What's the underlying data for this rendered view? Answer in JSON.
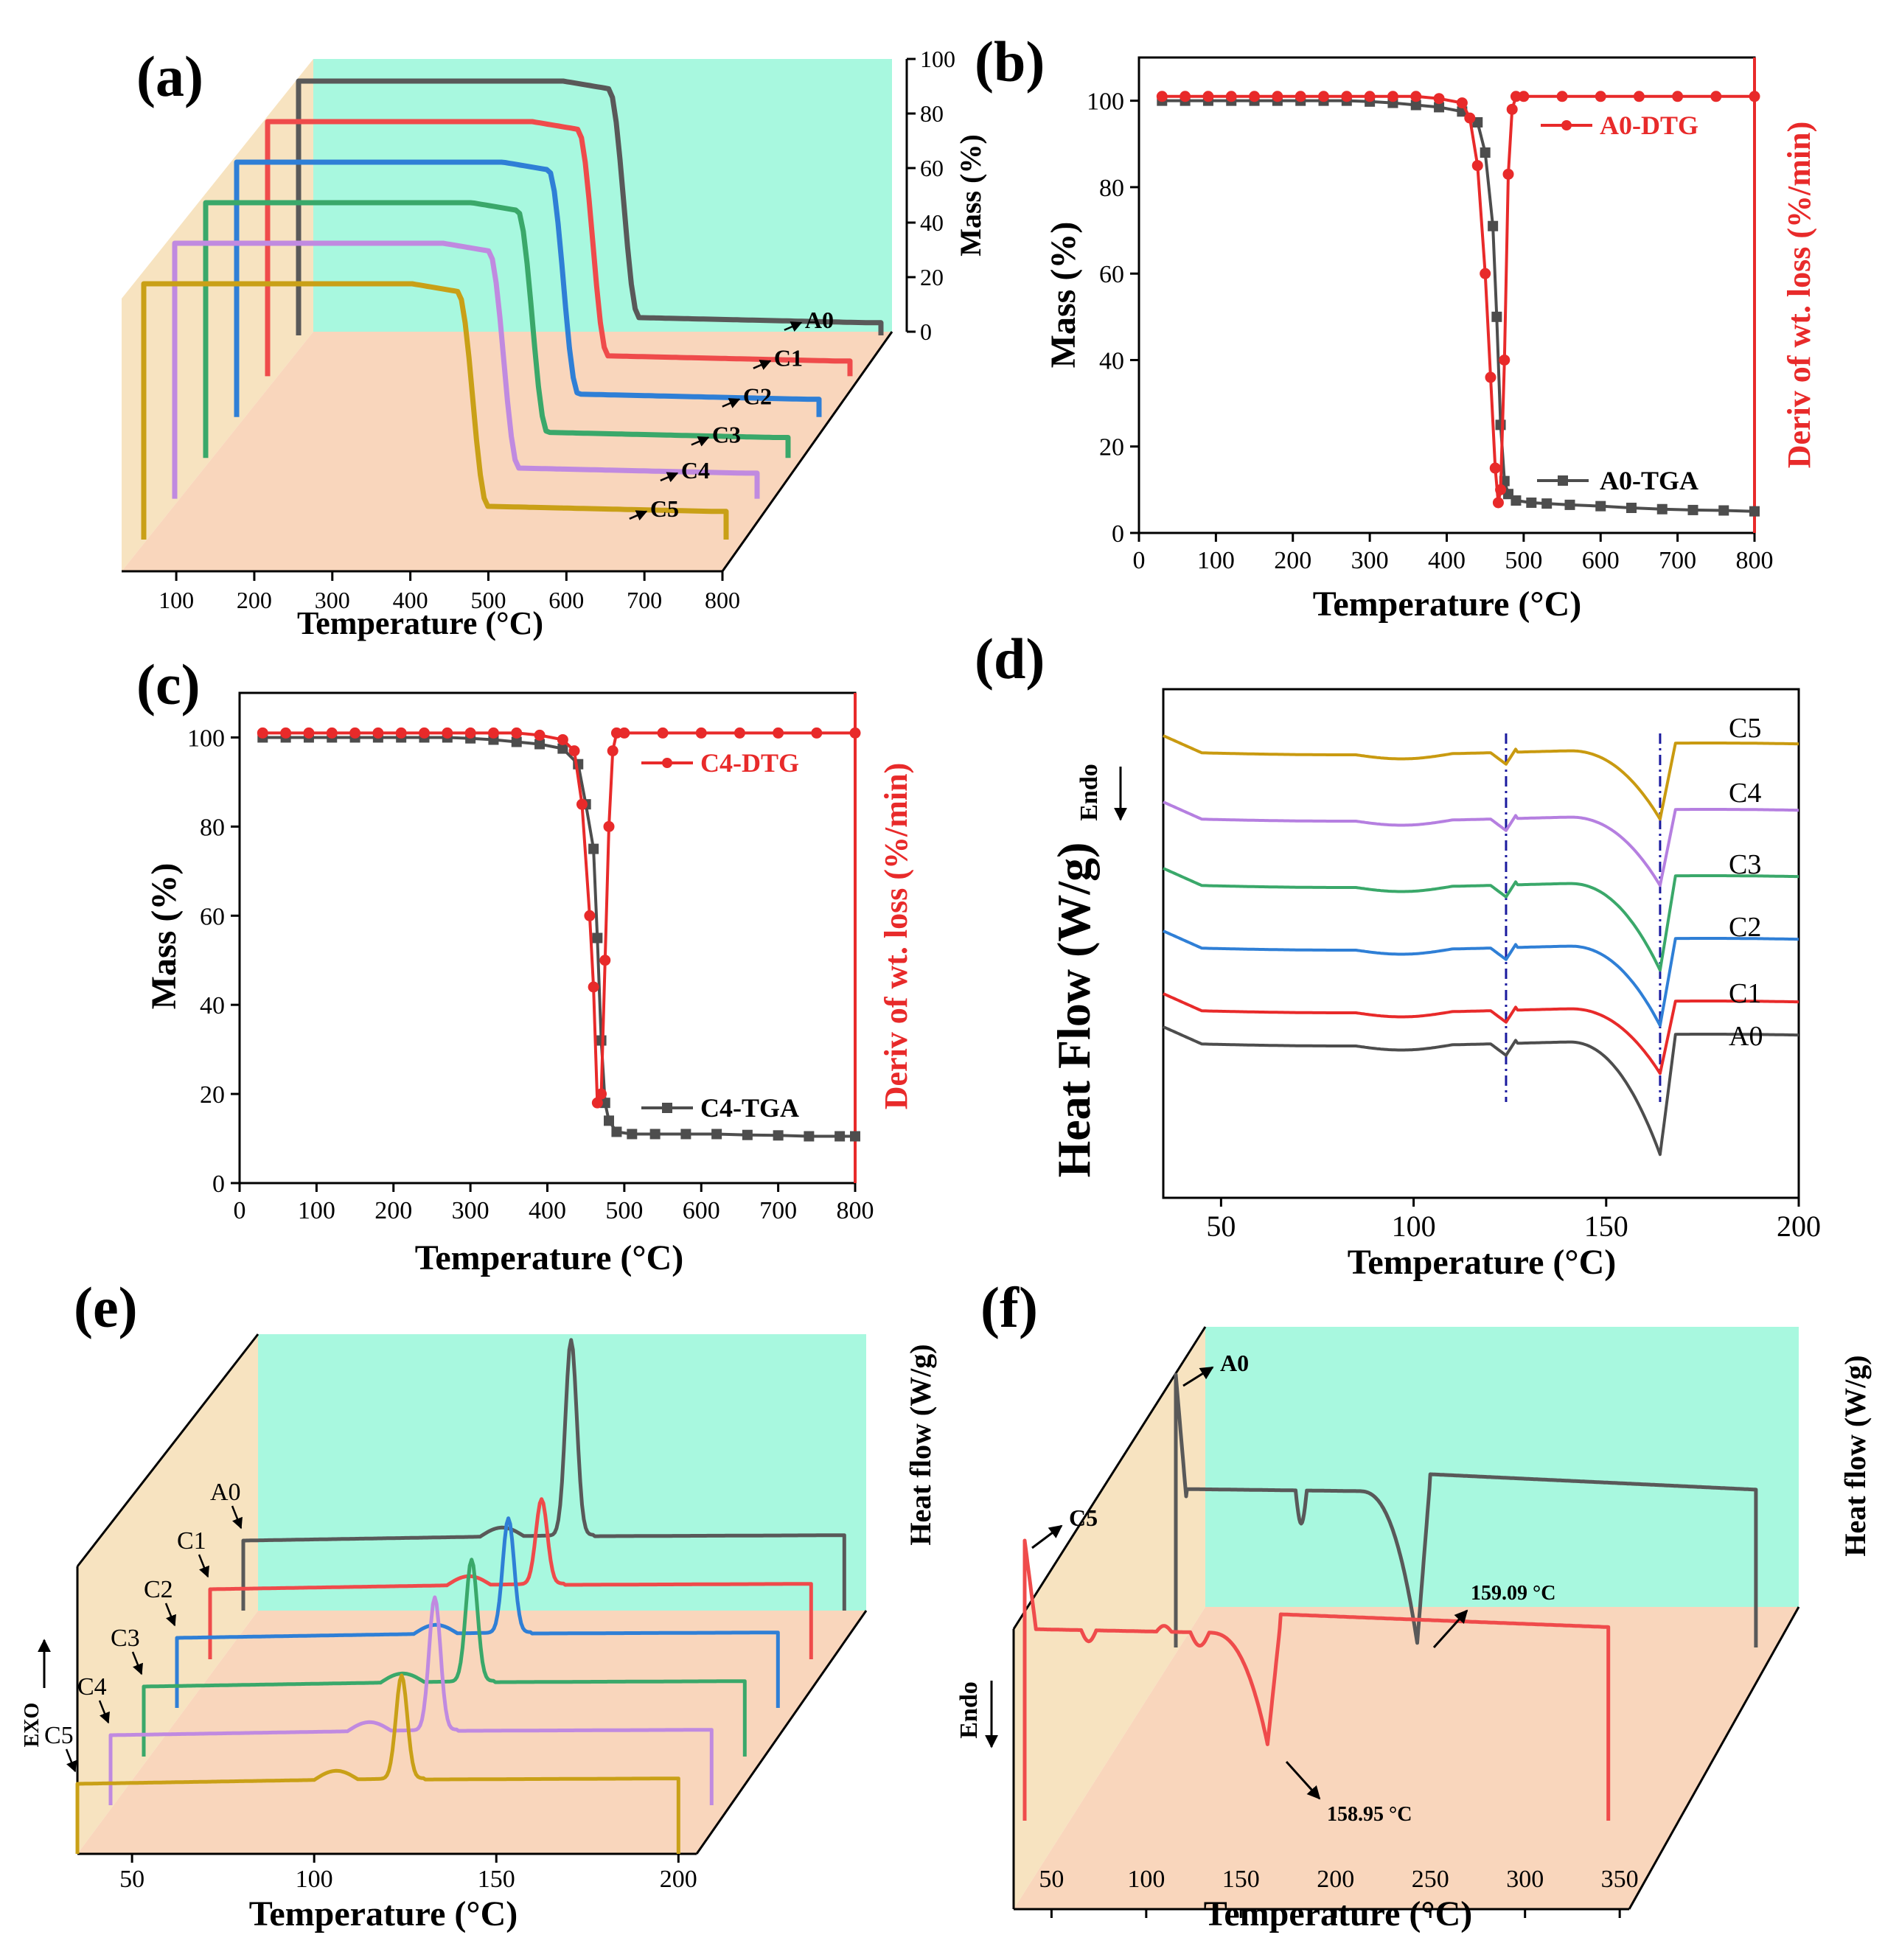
{
  "panels": {
    "a": {
      "letter": "(a)"
    },
    "b": {
      "letter": "(b)"
    },
    "c": {
      "letter": "(c)"
    },
    "d": {
      "letter": "(d)"
    },
    "e": {
      "letter": "(e)"
    },
    "f": {
      "letter": "(f)"
    }
  },
  "chart_data": [
    {
      "panel": "a",
      "type": "line",
      "style": "3d-waterfall",
      "xlabel": "Temperature (°C)",
      "zlabel": "Mass (%)",
      "xlim": [
        30,
        800
      ],
      "zlim": [
        0,
        100
      ],
      "xticks": [
        100,
        200,
        300,
        400,
        500,
        600,
        700,
        800
      ],
      "zticks": [
        0,
        20,
        40,
        60,
        80,
        100
      ],
      "colors": {
        "A0": "#595959",
        "C1": "#ef4b4b",
        "C2": "#2f7fd6",
        "C3": "#3aa86a",
        "C4": "#c08ae0",
        "C5": "#c9a017"
      },
      "series": [
        {
          "name": "A0",
          "onset": 440,
          "end": 480,
          "residue": 5
        },
        {
          "name": "C1",
          "onset": 440,
          "end": 480,
          "residue": 6
        },
        {
          "name": "C2",
          "onset": 442,
          "end": 482,
          "residue": 7
        },
        {
          "name": "C3",
          "onset": 442,
          "end": 482,
          "residue": 8
        },
        {
          "name": "C4",
          "onset": 445,
          "end": 485,
          "residue": 10
        },
        {
          "name": "C5",
          "onset": 445,
          "end": 485,
          "residue": 11
        }
      ],
      "labels": [
        "A0",
        "C1",
        "C2",
        "C3",
        "C4",
        "C5"
      ]
    },
    {
      "panel": "b",
      "type": "line",
      "xlabel": "Temperature (°C)",
      "ylabel": "Mass (%)",
      "y2label": "Deriv of wt. loss (%/min)",
      "xlim": [
        0,
        800
      ],
      "ylim": [
        0,
        110
      ],
      "xticks": [
        0,
        100,
        200,
        300,
        400,
        500,
        600,
        700,
        800
      ],
      "yticks": [
        0,
        20,
        40,
        60,
        80,
        100
      ],
      "series": [
        {
          "name": "A0-TGA",
          "color": "#4d4d4d",
          "x": [
            30,
            60,
            90,
            120,
            150,
            180,
            210,
            240,
            270,
            300,
            330,
            360,
            390,
            420,
            440,
            450,
            460,
            465,
            470,
            475,
            480,
            490,
            510,
            530,
            560,
            600,
            640,
            680,
            720,
            760,
            800
          ],
          "y": [
            100,
            100,
            100,
            100,
            100,
            100,
            100,
            100,
            100,
            99.8,
            99.5,
            99,
            98.5,
            97.5,
            95,
            88,
            71,
            50,
            25,
            12,
            9,
            7.5,
            7,
            6.8,
            6.5,
            6.2,
            5.8,
            5.5,
            5.3,
            5.2,
            5
          ]
        },
        {
          "name": "A0-DTG",
          "color": "#e82a2a",
          "x": [
            30,
            60,
            90,
            120,
            150,
            180,
            210,
            240,
            270,
            300,
            330,
            360,
            390,
            420,
            430,
            440,
            450,
            457,
            463,
            467,
            470,
            475,
            480,
            485,
            490,
            500,
            550,
            600,
            650,
            700,
            750,
            800
          ],
          "y": [
            101,
            101,
            101,
            101,
            101,
            101,
            101,
            101,
            101,
            101,
            101,
            101,
            100.5,
            99.5,
            96,
            85,
            60,
            36,
            15,
            7,
            10,
            40,
            83,
            98,
            101,
            101,
            101,
            101,
            101,
            101,
            101,
            101
          ]
        }
      ],
      "labels": [
        "A0-DTG",
        "A0-TGA"
      ]
    },
    {
      "panel": "c",
      "type": "line",
      "xlabel": "Temperature (°C)",
      "ylabel": "Mass (%)",
      "y2label": "Deriv of wt. loss (%/min)",
      "xlim": [
        0,
        800
      ],
      "ylim": [
        0,
        110
      ],
      "xticks": [
        0,
        100,
        200,
        300,
        400,
        500,
        600,
        700,
        800
      ],
      "yticks": [
        0,
        20,
        40,
        60,
        80,
        100
      ],
      "series": [
        {
          "name": "C4-TGA",
          "color": "#4d4d4d",
          "x": [
            30,
            60,
            90,
            120,
            150,
            180,
            210,
            240,
            270,
            300,
            330,
            360,
            390,
            420,
            440,
            450,
            460,
            465,
            470,
            475,
            480,
            490,
            510,
            540,
            580,
            620,
            660,
            700,
            740,
            780,
            800
          ],
          "y": [
            100,
            100,
            100,
            100,
            100,
            100,
            100,
            100,
            100,
            99.8,
            99.5,
            99,
            98.5,
            97.5,
            94,
            85,
            75,
            55,
            32,
            18,
            14,
            11.5,
            11,
            11,
            11,
            11,
            10.8,
            10.7,
            10.5,
            10.5,
            10.5
          ]
        },
        {
          "name": "C4-DTG",
          "color": "#e82a2a",
          "x": [
            30,
            60,
            90,
            120,
            150,
            180,
            210,
            240,
            270,
            300,
            330,
            360,
            390,
            420,
            435,
            445,
            455,
            460,
            465,
            470,
            475,
            480,
            485,
            490,
            500,
            550,
            600,
            650,
            700,
            750,
            800
          ],
          "y": [
            101,
            101,
            101,
            101,
            101,
            101,
            101,
            101,
            101,
            101,
            101,
            101,
            100.5,
            99.5,
            97,
            85,
            60,
            44,
            18,
            20,
            50,
            80,
            97,
            101,
            101,
            101,
            101,
            101,
            101,
            101,
            101
          ]
        }
      ],
      "labels": [
        "C4-DTG",
        "C4-TGA"
      ]
    },
    {
      "panel": "d",
      "type": "line",
      "xlabel": "Temperature (°C)",
      "ylabel": "Heat Flow (W/g)",
      "annotation": "Endo",
      "xlim": [
        35,
        200
      ],
      "xticks": [
        50,
        100,
        150,
        200
      ],
      "vlines": [
        124,
        164
      ],
      "series": [
        {
          "name": "A0",
          "color": "#4d4d4d"
        },
        {
          "name": "C1",
          "color": "#e82a2a"
        },
        {
          "name": "C2",
          "color": "#2f7fd6"
        },
        {
          "name": "C3",
          "color": "#3aa86a"
        },
        {
          "name": "C4",
          "color": "#b57fe0"
        },
        {
          "name": "C5",
          "color": "#c99a10"
        }
      ],
      "labels": [
        "C5",
        "C4",
        "C3",
        "C2",
        "C1",
        "A0"
      ]
    },
    {
      "panel": "e",
      "type": "line",
      "style": "3d-waterfall",
      "xlabel": "Temperature (°C)",
      "zlabel": "Heat flow (W/g)",
      "annotation": "EXO",
      "xticks": [
        50,
        100,
        150,
        200
      ],
      "series": [
        {
          "name": "A0",
          "color": "#595959",
          "peak": 125
        },
        {
          "name": "C1",
          "color": "#ef4b4b",
          "peak": 126
        },
        {
          "name": "C2",
          "color": "#2f7fd6",
          "peak": 126
        },
        {
          "name": "C3",
          "color": "#3aa86a",
          "peak": 125
        },
        {
          "name": "C4",
          "color": "#c08ae0",
          "peak": 124
        },
        {
          "name": "C5",
          "color": "#c9a017",
          "peak": 124
        }
      ],
      "labels": [
        "A0",
        "C1",
        "C2",
        "C3",
        "C4",
        "C5"
      ]
    },
    {
      "panel": "f",
      "type": "line",
      "style": "3d-waterfall",
      "xlabel": "Temperature (°C)",
      "zlabel": "Heat flow (W/g)",
      "annotation": "Endo",
      "xticks": [
        50,
        100,
        150,
        200,
        250,
        300,
        350
      ],
      "series": [
        {
          "name": "A0",
          "color": "#595959",
          "peak": 159.09
        },
        {
          "name": "C5",
          "color": "#ef4b4b",
          "peak": 158.95
        }
      ],
      "labels": [
        "A0",
        "C5",
        "159.09 °C",
        "158.95 °C"
      ]
    }
  ]
}
